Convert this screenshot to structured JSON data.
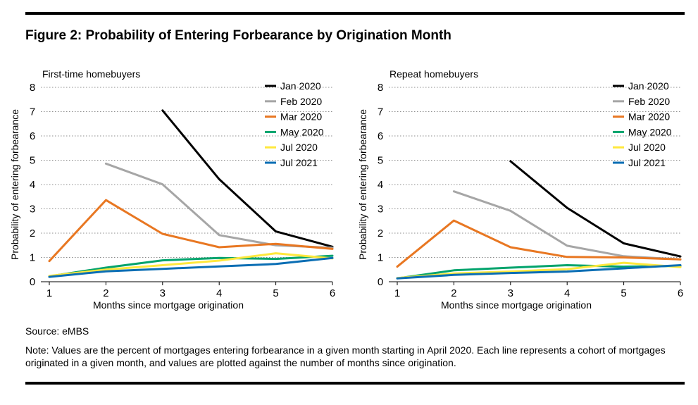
{
  "figure": {
    "title": "Figure 2:  Probability of Entering Forbearance by Origination Month",
    "source": "Source: eMBS",
    "note": "Note: Values are the percent of mortgages entering forbearance in a given month starting in April 2020. Each line represents a cohort of mortgages originated in a given month, and values are plotted against the number of months since origination."
  },
  "chart_data": [
    {
      "type": "line",
      "title": "First-time homebuyers",
      "xlabel": "Months since mortgage origination",
      "ylabel": "Probability of entering forbearance",
      "x": [
        1,
        2,
        3,
        4,
        5,
        6
      ],
      "xlim": [
        1,
        6
      ],
      "ylim": [
        0,
        8
      ],
      "yticks": [
        0,
        1,
        2,
        3,
        4,
        5,
        6,
        7,
        8
      ],
      "grid": "horizontal dotted",
      "legend": "top-right",
      "series": [
        {
          "name": "Jan 2020",
          "color": "#000000",
          "values": [
            null,
            null,
            7.05,
            4.22,
            2.07,
            1.44
          ]
        },
        {
          "name": "Feb 2020",
          "color": "#a6a6a6",
          "values": [
            null,
            4.86,
            4.01,
            1.92,
            1.5,
            1.4
          ]
        },
        {
          "name": "Mar 2020",
          "color": "#e87722",
          "values": [
            0.85,
            3.36,
            1.97,
            1.42,
            1.56,
            1.35
          ]
        },
        {
          "name": "May 2020",
          "color": "#00a36c",
          "values": [
            0.22,
            0.58,
            0.88,
            0.98,
            0.94,
            1.07
          ]
        },
        {
          "name": "Jul 2020",
          "color": "#ffe83d",
          "values": [
            0.24,
            0.5,
            0.68,
            0.87,
            1.17,
            0.96
          ]
        },
        {
          "name": "Jul 2021",
          "color": "#0a6eb4",
          "values": [
            0.2,
            0.43,
            0.53,
            0.63,
            0.73,
            0.98
          ]
        }
      ]
    },
    {
      "type": "line",
      "title": "Repeat homebuyers",
      "xlabel": "Months since mortgage origination",
      "ylabel": "Probability of entering forbearance",
      "x": [
        1,
        2,
        3,
        4,
        5,
        6
      ],
      "xlim": [
        1,
        6
      ],
      "ylim": [
        0,
        8
      ],
      "yticks": [
        0,
        1,
        2,
        3,
        4,
        5,
        6,
        7,
        8
      ],
      "grid": "horizontal dotted",
      "legend": "top-right",
      "series": [
        {
          "name": "Jan 2020",
          "color": "#000000",
          "values": [
            null,
            null,
            4.96,
            3.04,
            1.58,
            1.04
          ]
        },
        {
          "name": "Feb 2020",
          "color": "#a6a6a6",
          "values": [
            null,
            3.72,
            2.92,
            1.48,
            1.05,
            0.92
          ]
        },
        {
          "name": "Mar 2020",
          "color": "#e87722",
          "values": [
            0.62,
            2.52,
            1.42,
            1.02,
            1.0,
            0.92
          ]
        },
        {
          "name": "May 2020",
          "color": "#00a36c",
          "values": [
            0.14,
            0.47,
            0.58,
            0.68,
            0.62,
            0.65
          ]
        },
        {
          "name": "Jul 2020",
          "color": "#ffe83d",
          "values": [
            0.15,
            0.34,
            0.42,
            0.52,
            0.78,
            0.6
          ]
        },
        {
          "name": "Jul 2021",
          "color": "#0a6eb4",
          "values": [
            0.14,
            0.28,
            0.36,
            0.42,
            0.55,
            0.68
          ]
        }
      ]
    }
  ]
}
